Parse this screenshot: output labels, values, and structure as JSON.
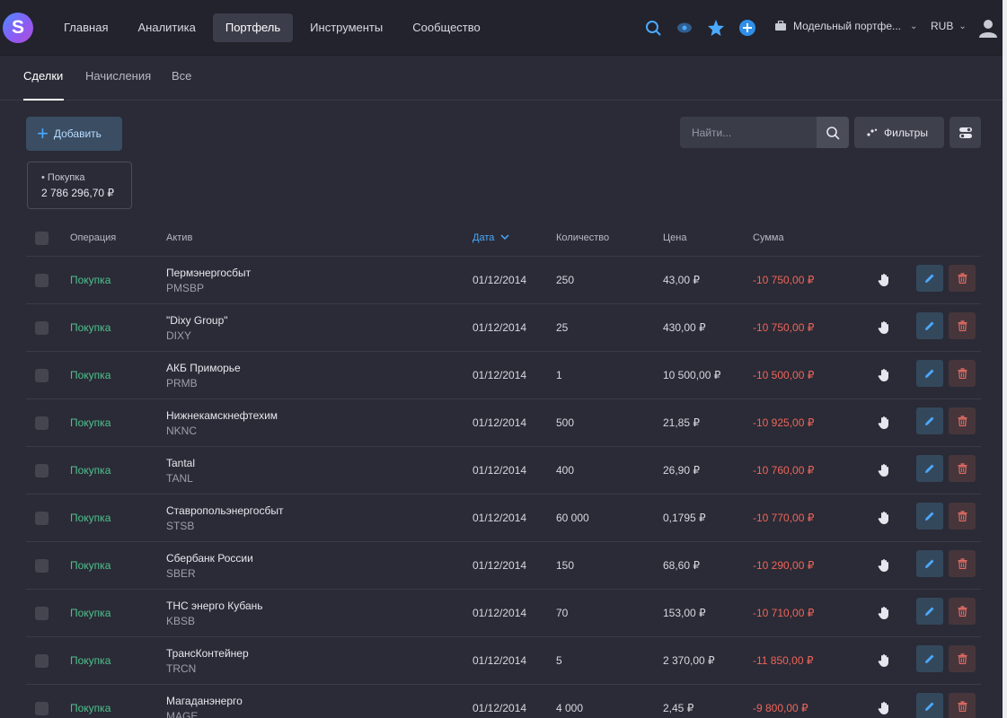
{
  "app": {
    "logo_letter": "S"
  },
  "nav": {
    "items": [
      {
        "label": "Главная",
        "active": false
      },
      {
        "label": "Аналитика",
        "active": false
      },
      {
        "label": "Портфель",
        "active": true
      },
      {
        "label": "Инструменты",
        "active": false
      },
      {
        "label": "Сообщество",
        "active": false
      }
    ]
  },
  "topbar": {
    "icons": [
      "search-icon",
      "eye-icon",
      "star-icon",
      "add-icon"
    ],
    "portfolio_label": "Модельный портфе...",
    "currency": "RUB"
  },
  "tabs": [
    {
      "label": "Сделки",
      "active": true
    },
    {
      "label": "Начисления",
      "active": false
    },
    {
      "label": "Все",
      "active": false
    }
  ],
  "toolbar": {
    "add_label": "Добавить",
    "search_placeholder": "Найти...",
    "filters_label": "Фильтры"
  },
  "summary": {
    "label": "• Покупка",
    "value": "2 786 296,70 ₽"
  },
  "table": {
    "headers": {
      "operation": "Операция",
      "asset": "Актив",
      "date": "Дата",
      "quantity": "Количество",
      "price": "Цена",
      "sum": "Сумма"
    },
    "rows": [
      {
        "operation": "Покупка",
        "name": "Пермэнергосбыт",
        "ticker": "PMSBP",
        "date": "01/12/2014",
        "quantity": "250",
        "price": "43,00 ₽",
        "sum": "-10 750,00 ₽"
      },
      {
        "operation": "Покупка",
        "name": "\"Dixy Group\"",
        "ticker": "DIXY",
        "date": "01/12/2014",
        "quantity": "25",
        "price": "430,00 ₽",
        "sum": "-10 750,00 ₽"
      },
      {
        "operation": "Покупка",
        "name": "АКБ Приморье",
        "ticker": "PRMB",
        "date": "01/12/2014",
        "quantity": "1",
        "price": "10 500,00 ₽",
        "sum": "-10 500,00 ₽"
      },
      {
        "operation": "Покупка",
        "name": "Нижнекамскнефтехим",
        "ticker": "NKNC",
        "date": "01/12/2014",
        "quantity": "500",
        "price": "21,85 ₽",
        "sum": "-10 925,00 ₽"
      },
      {
        "operation": "Покупка",
        "name": "Tantal",
        "ticker": "TANL",
        "date": "01/12/2014",
        "quantity": "400",
        "price": "26,90 ₽",
        "sum": "-10 760,00 ₽"
      },
      {
        "operation": "Покупка",
        "name": "Ставропольэнергосбыт",
        "ticker": "STSB",
        "date": "01/12/2014",
        "quantity": "60 000",
        "price": "0,1795 ₽",
        "sum": "-10 770,00 ₽"
      },
      {
        "operation": "Покупка",
        "name": "Сбербанк России",
        "ticker": "SBER",
        "date": "01/12/2014",
        "quantity": "150",
        "price": "68,60 ₽",
        "sum": "-10 290,00 ₽"
      },
      {
        "operation": "Покупка",
        "name": "ТНС энерго Кубань",
        "ticker": "KBSB",
        "date": "01/12/2014",
        "quantity": "70",
        "price": "153,00 ₽",
        "sum": "-10 710,00 ₽"
      },
      {
        "operation": "Покупка",
        "name": "ТрансКонтейнер",
        "ticker": "TRCN",
        "date": "01/12/2014",
        "quantity": "5",
        "price": "2 370,00 ₽",
        "sum": "-11 850,00 ₽"
      },
      {
        "operation": "Покупка",
        "name": "Магаданэнерго",
        "ticker": "MAGE",
        "date": "01/12/2014",
        "quantity": "4 000",
        "price": "2,45 ₽",
        "sum": "-9 800,00 ₽"
      }
    ]
  },
  "colors": {
    "accent": "#4aa9ff",
    "buy": "#4fc08d",
    "negative": "#f0645a"
  }
}
